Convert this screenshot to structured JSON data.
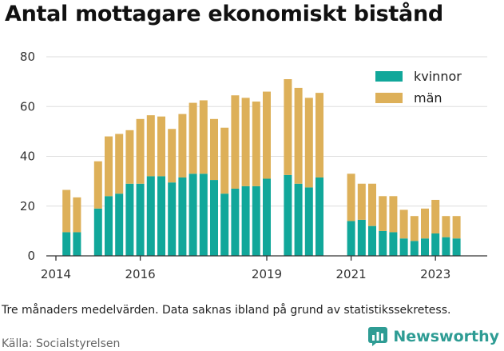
{
  "title": "Antal mottagare ekonomiskt bistånd",
  "note": "Tre månaders medelvärden. Data saknas ibland på grund av statistikssekretess.",
  "source": "Källa: Socialstyrelsen",
  "brand": {
    "name": "Newsworthy",
    "icon": "bar-chart-logo-icon"
  },
  "colors": {
    "kvinnor": "#11a79a",
    "man": "#ddb059",
    "grid": "#dddddd",
    "axis": "#333333"
  },
  "chart_data": {
    "type": "bar",
    "stacked": true,
    "title": "Antal mottagare ekonomiskt bistånd",
    "ylim": [
      0,
      80
    ],
    "yticks": [
      0,
      20,
      40,
      60,
      80
    ],
    "grid": true,
    "legend_position": "top-right",
    "xticks": [
      {
        "label": "2014",
        "at": 0
      },
      {
        "label": "2016",
        "at": 8
      },
      {
        "label": "2019",
        "at": 20
      },
      {
        "label": "2021",
        "at": 28
      },
      {
        "label": "2023",
        "at": 36
      }
    ],
    "categories": [
      "0",
      "1",
      "2",
      "3",
      "4",
      "5",
      "6",
      "7",
      "8",
      "9",
      "10",
      "11",
      "12",
      "13",
      "14",
      "15",
      "16",
      "17",
      "18",
      "19",
      "20",
      "21",
      "22",
      "23",
      "24",
      "25",
      "26",
      "27",
      "28",
      "29",
      "30",
      "31",
      "32",
      "33",
      "34",
      "35",
      "36",
      "37",
      "38"
    ],
    "series": [
      {
        "name": "kvinnor",
        "values": [
          null,
          9.5,
          9.5,
          null,
          19,
          24,
          25,
          29,
          29,
          32,
          32,
          29.5,
          31.5,
          33,
          33,
          30.5,
          25,
          27,
          28,
          28,
          31,
          null,
          32.5,
          29,
          27.5,
          31.5,
          null,
          null,
          14,
          14.5,
          12,
          10,
          9.5,
          7,
          6,
          7,
          9,
          7.5,
          7
        ]
      },
      {
        "name": "män",
        "values": [
          null,
          17,
          14,
          null,
          19,
          24,
          24,
          21.5,
          26,
          24.5,
          24,
          21.5,
          25.5,
          28.5,
          29.5,
          24.5,
          26.5,
          37.5,
          35.5,
          34,
          35,
          null,
          38.5,
          38.5,
          36,
          34,
          null,
          null,
          19,
          14.5,
          17,
          14,
          14.5,
          11.5,
          10,
          12,
          13.5,
          8.5,
          9
        ]
      }
    ]
  }
}
